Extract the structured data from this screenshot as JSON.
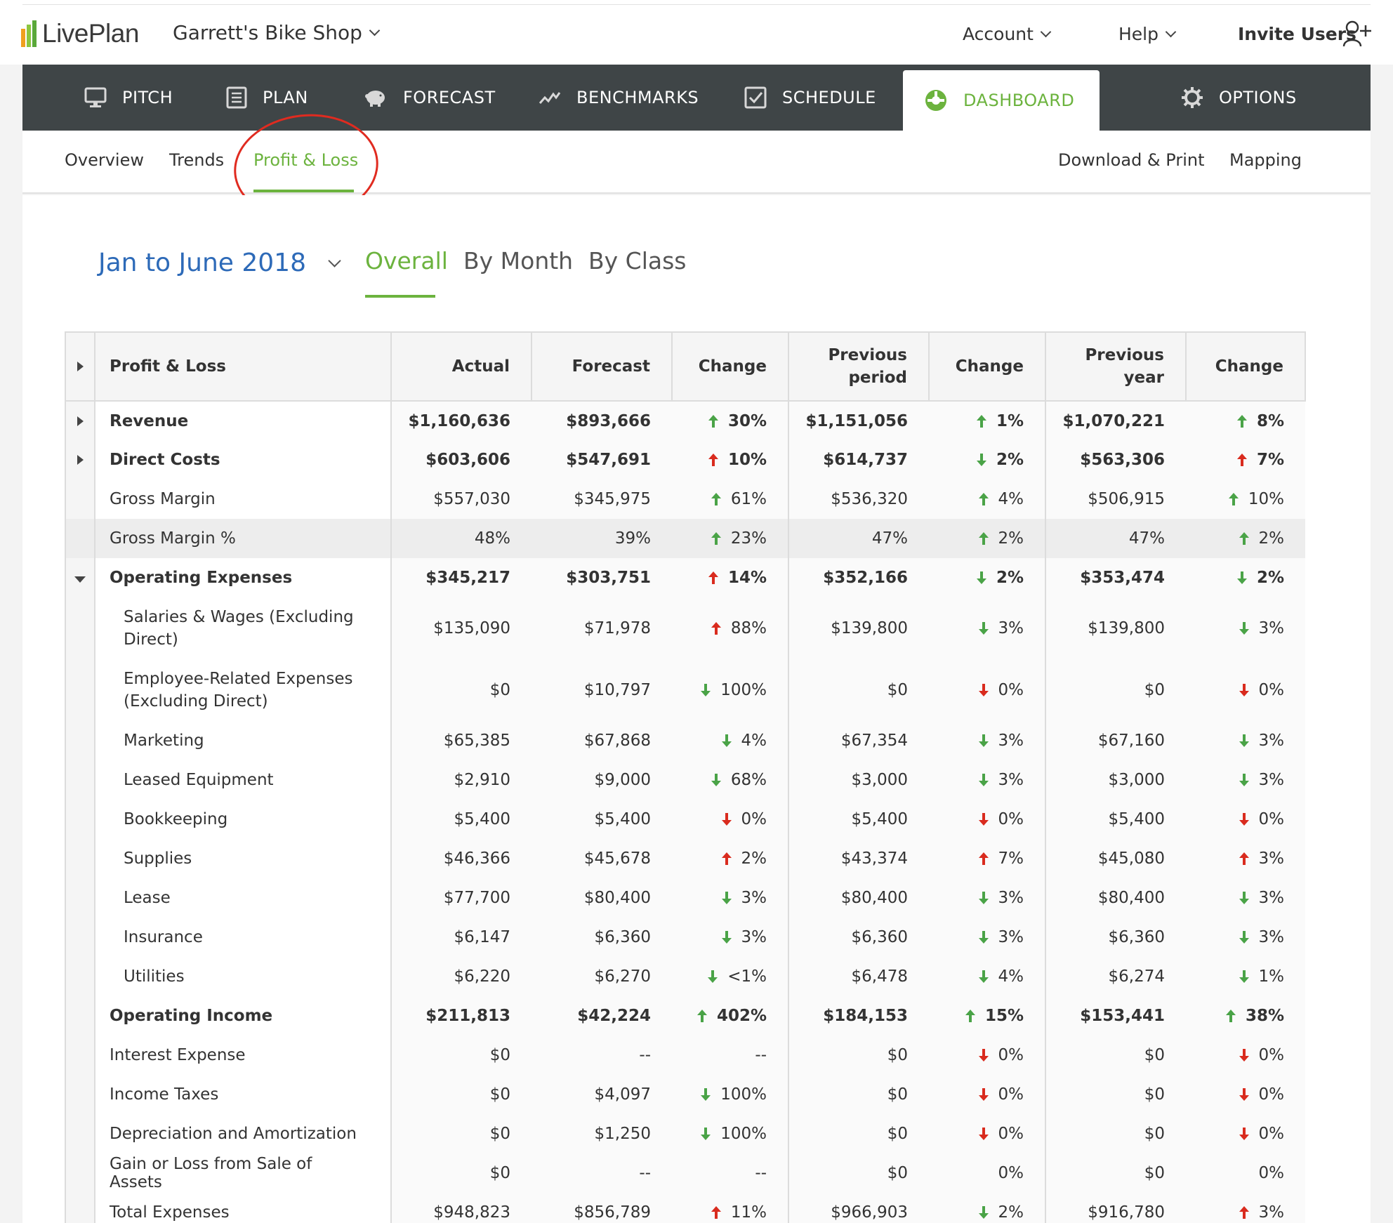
{
  "header": {
    "logo_text": "LivePlan",
    "company": "Garrett's Bike Shop",
    "account": "Account",
    "help": "Help",
    "invite": "Invite Users"
  },
  "colors": {
    "accent": "#6cb33e",
    "nav_bg": "#3f4547",
    "link_blue": "#2d6ab8",
    "annotation_red": "#e02b20"
  },
  "main_nav": [
    {
      "label": "PITCH",
      "icon": "monitor-icon"
    },
    {
      "label": "PLAN",
      "icon": "document-icon"
    },
    {
      "label": "FORECAST",
      "icon": "piggy-bank-icon"
    },
    {
      "label": "BENCHMARKS",
      "icon": "trend-line-icon"
    },
    {
      "label": "SCHEDULE",
      "icon": "checkbox-icon"
    },
    {
      "label": "DASHBOARD",
      "icon": "gauge-icon",
      "active": true
    },
    {
      "label": "OPTIONS",
      "icon": "gear-icon"
    }
  ],
  "sub_nav": {
    "overview": "Overview",
    "trends": "Trends",
    "profit_loss": "Profit & Loss",
    "download": "Download & Print",
    "mapping": "Mapping"
  },
  "period": "Jan to June 2018",
  "view_tabs": {
    "overall": "Overall",
    "by_month": "By Month",
    "by_class": "By Class"
  },
  "table": {
    "headers": {
      "title": "Profit & Loss",
      "actual": "Actual",
      "forecast": "Forecast",
      "change1": "Change",
      "prev_period_1": "Previous",
      "prev_period_2": "period",
      "change2": "Change",
      "prev_year_1": "Previous",
      "prev_year_2": "year",
      "change3": "Change"
    },
    "rows": [
      {
        "label": "Revenue",
        "type": "bold",
        "toggle": "right",
        "actual": "$1,160,636",
        "forecast": "$893,666",
        "c1": [
          "up-green",
          "30%"
        ],
        "prev_period": "$1,151,056",
        "c2": [
          "up-green",
          "1%"
        ],
        "prev_year": "$1,070,221",
        "c3": [
          "up-green",
          "8%"
        ]
      },
      {
        "label": "Direct Costs",
        "type": "bold",
        "toggle": "right",
        "actual": "$603,606",
        "forecast": "$547,691",
        "c1": [
          "up-red",
          "10%"
        ],
        "prev_period": "$614,737",
        "c2": [
          "down-green",
          "2%"
        ],
        "prev_year": "$563,306",
        "c3": [
          "up-red",
          "7%"
        ]
      },
      {
        "label": "Gross Margin",
        "type": "normal",
        "actual": "$557,030",
        "forecast": "$345,975",
        "c1": [
          "up-green",
          "61%"
        ],
        "prev_period": "$536,320",
        "c2": [
          "up-green",
          "4%"
        ],
        "prev_year": "$506,915",
        "c3": [
          "up-green",
          "10%"
        ]
      },
      {
        "label": "Gross Margin %",
        "type": "hl",
        "actual": "48%",
        "forecast": "39%",
        "c1": [
          "up-green",
          "23%"
        ],
        "prev_period": "47%",
        "c2": [
          "up-green",
          "2%"
        ],
        "prev_year": "47%",
        "c3": [
          "up-green",
          "2%"
        ]
      },
      {
        "label": "Operating Expenses",
        "type": "bold",
        "toggle": "down",
        "actual": "$345,217",
        "forecast": "$303,751",
        "c1": [
          "up-red",
          "14%"
        ],
        "prev_period": "$352,166",
        "c2": [
          "down-green",
          "2%"
        ],
        "prev_year": "$353,474",
        "c3": [
          "down-green",
          "2%"
        ]
      },
      {
        "label": "Salaries & Wages (Excluding Direct)",
        "type": "child tall",
        "actual": "$135,090",
        "forecast": "$71,978",
        "c1": [
          "up-red",
          "88%"
        ],
        "prev_period": "$139,800",
        "c2": [
          "down-green",
          "3%"
        ],
        "prev_year": "$139,800",
        "c3": [
          "down-green",
          "3%"
        ]
      },
      {
        "label": "Employee-Related Expenses (Excluding Direct)",
        "type": "child tall",
        "actual": "$0",
        "forecast": "$10,797",
        "c1": [
          "down-green",
          "100%"
        ],
        "prev_period": "$0",
        "c2": [
          "down-red",
          "0%"
        ],
        "prev_year": "$0",
        "c3": [
          "down-red",
          "0%"
        ]
      },
      {
        "label": "Marketing",
        "type": "child",
        "actual": "$65,385",
        "forecast": "$67,868",
        "c1": [
          "down-green",
          "4%"
        ],
        "prev_period": "$67,354",
        "c2": [
          "down-green",
          "3%"
        ],
        "prev_year": "$67,160",
        "c3": [
          "down-green",
          "3%"
        ]
      },
      {
        "label": "Leased Equipment",
        "type": "child",
        "actual": "$2,910",
        "forecast": "$9,000",
        "c1": [
          "down-green",
          "68%"
        ],
        "prev_period": "$3,000",
        "c2": [
          "down-green",
          "3%"
        ],
        "prev_year": "$3,000",
        "c3": [
          "down-green",
          "3%"
        ]
      },
      {
        "label": "Bookkeeping",
        "type": "child",
        "actual": "$5,400",
        "forecast": "$5,400",
        "c1": [
          "down-red",
          "0%"
        ],
        "prev_period": "$5,400",
        "c2": [
          "down-red",
          "0%"
        ],
        "prev_year": "$5,400",
        "c3": [
          "down-red",
          "0%"
        ]
      },
      {
        "label": "Supplies",
        "type": "child",
        "actual": "$46,366",
        "forecast": "$45,678",
        "c1": [
          "up-red",
          "2%"
        ],
        "prev_period": "$43,374",
        "c2": [
          "up-red",
          "7%"
        ],
        "prev_year": "$45,080",
        "c3": [
          "up-red",
          "3%"
        ]
      },
      {
        "label": "Lease",
        "type": "child",
        "actual": "$77,700",
        "forecast": "$80,400",
        "c1": [
          "down-green",
          "3%"
        ],
        "prev_period": "$80,400",
        "c2": [
          "down-green",
          "3%"
        ],
        "prev_year": "$80,400",
        "c3": [
          "down-green",
          "3%"
        ]
      },
      {
        "label": "Insurance",
        "type": "child",
        "actual": "$6,147",
        "forecast": "$6,360",
        "c1": [
          "down-green",
          "3%"
        ],
        "prev_period": "$6,360",
        "c2": [
          "down-green",
          "3%"
        ],
        "prev_year": "$6,360",
        "c3": [
          "down-green",
          "3%"
        ]
      },
      {
        "label": "Utilities",
        "type": "child",
        "actual": "$6,220",
        "forecast": "$6,270",
        "c1": [
          "down-green",
          "<1%"
        ],
        "prev_period": "$6,478",
        "c2": [
          "down-green",
          "4%"
        ],
        "prev_year": "$6,274",
        "c3": [
          "down-green",
          "1%"
        ]
      },
      {
        "label": "Operating Income",
        "type": "bold",
        "actual": "$211,813",
        "forecast": "$42,224",
        "c1": [
          "up-green",
          "402%"
        ],
        "prev_period": "$184,153",
        "c2": [
          "up-green",
          "15%"
        ],
        "prev_year": "$153,441",
        "c3": [
          "up-green",
          "38%"
        ]
      },
      {
        "label": "Interest Expense",
        "type": "normal",
        "actual": "$0",
        "forecast": "--",
        "c1": [
          "",
          "--"
        ],
        "prev_period": "$0",
        "c2": [
          "down-red",
          "0%"
        ],
        "prev_year": "$0",
        "c3": [
          "down-red",
          "0%"
        ]
      },
      {
        "label": "Income Taxes",
        "type": "normal",
        "actual": "$0",
        "forecast": "$4,097",
        "c1": [
          "down-green",
          "100%"
        ],
        "prev_period": "$0",
        "c2": [
          "down-red",
          "0%"
        ],
        "prev_year": "$0",
        "c3": [
          "down-red",
          "0%"
        ]
      },
      {
        "label": "Depreciation and Amortization",
        "type": "normal",
        "actual": "$0",
        "forecast": "$1,250",
        "c1": [
          "down-green",
          "100%"
        ],
        "prev_period": "$0",
        "c2": [
          "down-red",
          "0%"
        ],
        "prev_year": "$0",
        "c3": [
          "down-red",
          "0%"
        ]
      },
      {
        "label": "Gain or Loss from Sale of Assets",
        "type": "normal",
        "actual": "$0",
        "forecast": "--",
        "c1": [
          "",
          "--"
        ],
        "prev_period": "$0",
        "c2": [
          "",
          "0%"
        ],
        "prev_year": "$0",
        "c3": [
          "",
          "0%"
        ]
      },
      {
        "label": "Total Expenses",
        "type": "normal",
        "actual": "$948,823",
        "forecast": "$856,789",
        "c1": [
          "up-red",
          "11%"
        ],
        "prev_period": "$966,903",
        "c2": [
          "down-green",
          "2%"
        ],
        "prev_year": "$916,780",
        "c3": [
          "up-red",
          "3%"
        ]
      }
    ]
  }
}
